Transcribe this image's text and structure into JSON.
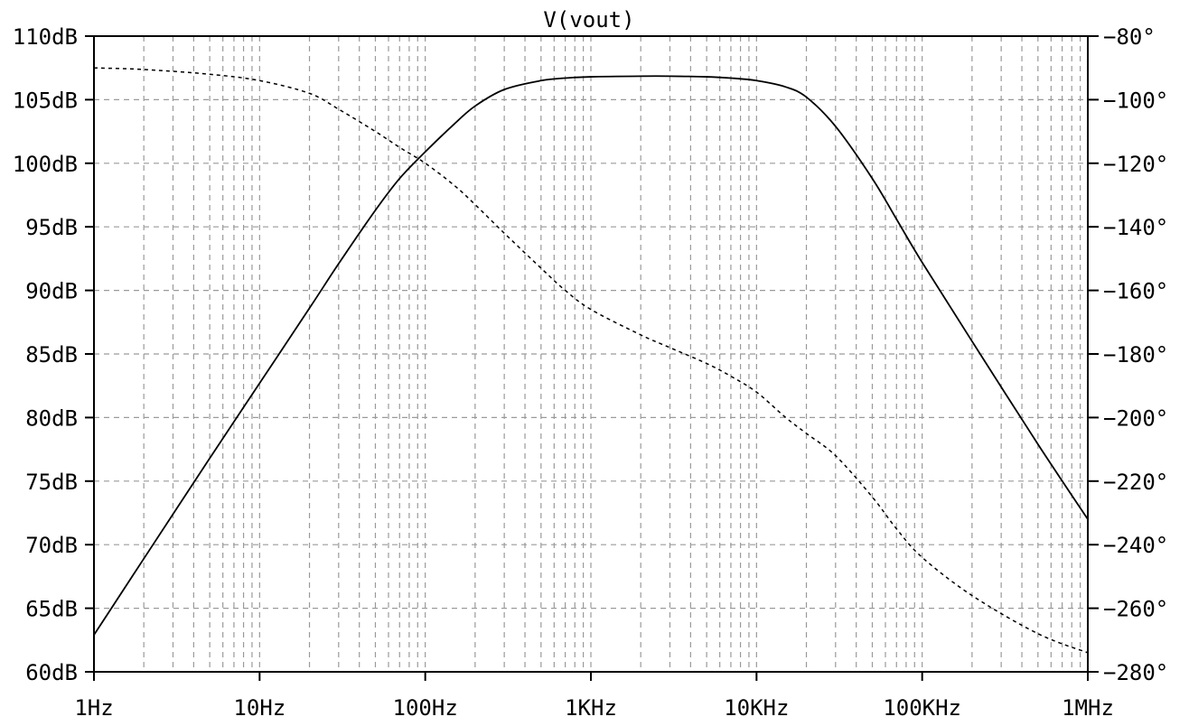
{
  "chart_data": {
    "type": "line",
    "title": "V(vout)",
    "x_scale": "log",
    "xlim": [
      1,
      1000000
    ],
    "x_ticks": [
      {
        "value": 1,
        "label": "1Hz"
      },
      {
        "value": 10,
        "label": "10Hz"
      },
      {
        "value": 100,
        "label": "100Hz"
      },
      {
        "value": 1000,
        "label": "1KHz"
      },
      {
        "value": 10000,
        "label": "10KHz"
      },
      {
        "value": 100000,
        "label": "100KHz"
      },
      {
        "value": 1000000,
        "label": "1MHz"
      }
    ],
    "ylim_left": [
      60,
      110
    ],
    "y_left_ticks": [
      {
        "value": 110,
        "label": "110dB"
      },
      {
        "value": 105,
        "label": "105dB"
      },
      {
        "value": 100,
        "label": "100dB"
      },
      {
        "value": 95,
        "label": "95dB"
      },
      {
        "value": 90,
        "label": "90dB"
      },
      {
        "value": 85,
        "label": "85dB"
      },
      {
        "value": 80,
        "label": "80dB"
      },
      {
        "value": 75,
        "label": "75dB"
      },
      {
        "value": 70,
        "label": "70dB"
      },
      {
        "value": 65,
        "label": "65dB"
      },
      {
        "value": 60,
        "label": "60dB"
      }
    ],
    "ylim_right": [
      -280,
      -80
    ],
    "y_right_ticks": [
      {
        "value": -80,
        "label": "−80°"
      },
      {
        "value": -100,
        "label": "−100°"
      },
      {
        "value": -120,
        "label": "−120°"
      },
      {
        "value": -140,
        "label": "−140°"
      },
      {
        "value": -160,
        "label": "−160°"
      },
      {
        "value": -180,
        "label": "−180°"
      },
      {
        "value": -200,
        "label": "−200°"
      },
      {
        "value": -220,
        "label": "−220°"
      },
      {
        "value": -240,
        "label": "−240°"
      },
      {
        "value": -260,
        "label": "−260°"
      },
      {
        "value": -280,
        "label": "−280°"
      }
    ],
    "grid": true,
    "series": [
      {
        "axis": "left",
        "style": "solid",
        "x": [
          1,
          2,
          5,
          10,
          20,
          30,
          50,
          70,
          100,
          150,
          200,
          300,
          500,
          700,
          1000,
          2000,
          3000,
          5000,
          7000,
          10000,
          15000,
          20000,
          30000,
          50000,
          70000,
          100000,
          200000,
          500000,
          1000000
        ],
        "values": [
          62.9,
          68.9,
          76.8,
          82.7,
          88.6,
          92.1,
          96.3,
          98.8,
          100.9,
          103.1,
          104.5,
          105.8,
          106.5,
          106.7,
          106.8,
          106.85,
          106.85,
          106.8,
          106.7,
          106.5,
          106.0,
          105.2,
          102.9,
          98.8,
          95.6,
          92.2,
          86.0,
          77.9,
          72.0
        ]
      },
      {
        "axis": "right",
        "style": "dashed",
        "x": [
          1,
          2,
          5,
          10,
          20,
          30,
          50,
          70,
          100,
          150,
          200,
          300,
          500,
          700,
          1000,
          2000,
          3000,
          5000,
          7000,
          10000,
          15000,
          20000,
          30000,
          50000,
          70000,
          100000,
          200000,
          500000,
          1000000
        ],
        "values": [
          -90,
          -90.5,
          -92,
          -94,
          -98,
          -103,
          -110,
          -115,
          -120,
          -127,
          -133,
          -142,
          -153,
          -160,
          -166,
          -174,
          -178,
          -183,
          -187,
          -192,
          -200,
          -205,
          -212,
          -225,
          -235,
          -244,
          -256,
          -268,
          -274
        ]
      }
    ]
  }
}
